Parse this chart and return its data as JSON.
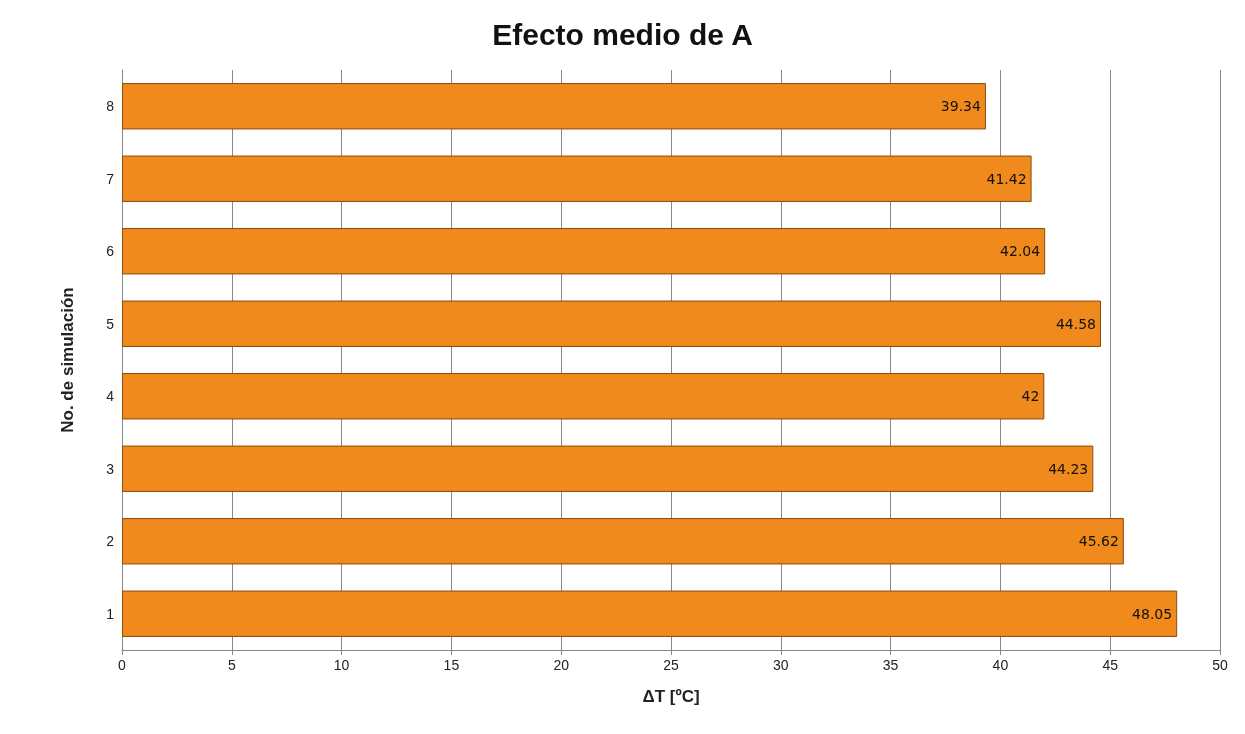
{
  "chart_data": {
    "type": "bar",
    "orientation": "horizontal",
    "title": "Efecto medio de A",
    "xlabel": "ΔT [ºC]",
    "ylabel": "No. de simulación",
    "categories": [
      "8",
      "7",
      "6",
      "5",
      "4",
      "3",
      "2",
      "1"
    ],
    "values": [
      39.34,
      41.42,
      42.04,
      44.58,
      42,
      44.23,
      45.62,
      48.05
    ],
    "color": "#f08a1c",
    "xlim": [
      0,
      50
    ],
    "xticks": [
      0,
      5,
      10,
      15,
      20,
      25,
      30,
      35,
      40,
      45,
      50
    ],
    "grid": "x",
    "data_labels": true
  }
}
